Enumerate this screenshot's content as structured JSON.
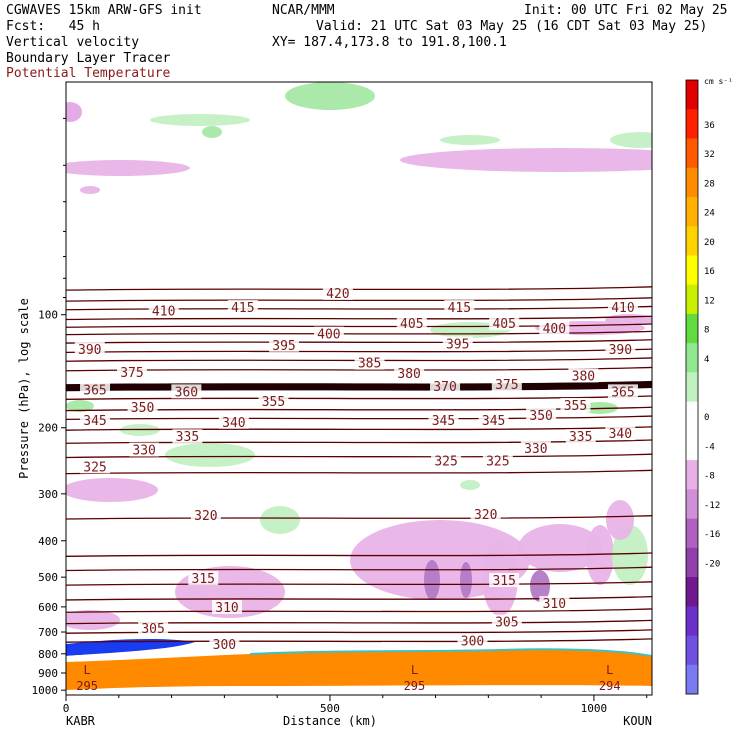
{
  "header": {
    "model": "CGWAVES 15km ARW-GFS init",
    "org": "NCAR/MMM",
    "init": "Init: 00 UTC Fri 02 May 25",
    "fcst": "Fcst:   45 h",
    "valid": "Valid: 21 UTC Sat 03 May 25 (16 CDT Sat 03 May 25)",
    "xy": "XY= 187.4,173.8 to 191.8,100.1",
    "fields": [
      "Vertical velocity",
      "Boundary Layer Tracer",
      "Potential Temperature"
    ]
  },
  "colorbar": {
    "unit": "cm s⁻¹",
    "labels": [
      "36",
      "32",
      "28",
      "24",
      "20",
      "16",
      "12",
      "8",
      "4",
      "0",
      "-4",
      "-8",
      "-12",
      "-16",
      "-20"
    ],
    "colors": [
      "#e00000",
      "#ff2000",
      "#ff5a00",
      "#ff8c00",
      "#ffb000",
      "#ffd200",
      "#ffff00",
      "#c8f000",
      "#60dc40",
      "#90e890",
      "#c0f0c0",
      "#ffffff",
      "#ffffff",
      "#e8b0e8",
      "#d090d8",
      "#b060c0",
      "#9040a8",
      "#701890",
      "#6a30c8",
      "#7050e0",
      "#7a7af0"
    ]
  },
  "chart_data": {
    "type": "contour-cross-section",
    "xlabel": "Distance (km)",
    "ylabel": "Pressure (hPa), log scale",
    "x_ticks": [
      "0",
      "500",
      "1000"
    ],
    "x_tick_values": [
      0,
      500,
      1000
    ],
    "y_ticks": [
      "100",
      "200",
      "300",
      "400",
      "500",
      "600",
      "700",
      "800",
      "900",
      "1000"
    ],
    "y_tick_values": [
      100,
      200,
      300,
      400,
      500,
      600,
      700,
      800,
      900,
      1000
    ],
    "xlim": [
      0,
      1110
    ],
    "ylim": [
      1030,
      24
    ],
    "left_endpoint": "KABR",
    "right_endpoint": "KOUN",
    "surface_low_labels": [
      {
        "mark": "L",
        "value": "295",
        "x": 40
      },
      {
        "mark": "L",
        "value": "295",
        "x": 660
      },
      {
        "mark": "L",
        "value": "294",
        "x": 1030
      }
    ],
    "theta_labels": [
      {
        "text": "420",
        "x": 515,
        "p": 88
      },
      {
        "text": "410",
        "x": 185,
        "p": 98
      },
      {
        "text": "415",
        "x": 335,
        "p": 96
      },
      {
        "text": "415",
        "x": 745,
        "p": 96
      },
      {
        "text": "410",
        "x": 1055,
        "p": 96
      },
      {
        "text": "405",
        "x": 655,
        "p": 106
      },
      {
        "text": "405",
        "x": 830,
        "p": 106
      },
      {
        "text": "400",
        "x": 498,
        "p": 113
      },
      {
        "text": "400",
        "x": 925,
        "p": 109
      },
      {
        "text": "390",
        "x": 45,
        "p": 124
      },
      {
        "text": "395",
        "x": 413,
        "p": 121
      },
      {
        "text": "395",
        "x": 742,
        "p": 120
      },
      {
        "text": "390",
        "x": 1050,
        "p": 124
      },
      {
        "text": "385",
        "x": 575,
        "p": 135
      },
      {
        "text": "375",
        "x": 125,
        "p": 143
      },
      {
        "text": "380",
        "x": 650,
        "p": 144
      },
      {
        "text": "380",
        "x": 980,
        "p": 146
      },
      {
        "text": "365",
        "x": 55,
        "p": 159
      },
      {
        "text": "360",
        "x": 228,
        "p": 161
      },
      {
        "text": "370",
        "x": 718,
        "p": 156
      },
      {
        "text": "375",
        "x": 835,
        "p": 154
      },
      {
        "text": "365",
        "x": 1055,
        "p": 161
      },
      {
        "text": "355",
        "x": 393,
        "p": 171
      },
      {
        "text": "350",
        "x": 145,
        "p": 177
      },
      {
        "text": "355",
        "x": 965,
        "p": 175
      },
      {
        "text": "350",
        "x": 900,
        "p": 186
      },
      {
        "text": "345",
        "x": 55,
        "p": 192
      },
      {
        "text": "340",
        "x": 318,
        "p": 194
      },
      {
        "text": "345",
        "x": 715,
        "p": 192
      },
      {
        "text": "345",
        "x": 810,
        "p": 192
      },
      {
        "text": "335",
        "x": 230,
        "p": 212
      },
      {
        "text": "335",
        "x": 975,
        "p": 212
      },
      {
        "text": "340",
        "x": 1050,
        "p": 208
      },
      {
        "text": "330",
        "x": 148,
        "p": 230
      },
      {
        "text": "330",
        "x": 890,
        "p": 228
      },
      {
        "text": "325",
        "x": 55,
        "p": 255
      },
      {
        "text": "325",
        "x": 720,
        "p": 246
      },
      {
        "text": "325",
        "x": 818,
        "p": 246
      },
      {
        "text": "320",
        "x": 265,
        "p": 344
      },
      {
        "text": "320",
        "x": 795,
        "p": 342
      },
      {
        "text": "315",
        "x": 260,
        "p": 506
      },
      {
        "text": "315",
        "x": 830,
        "p": 512
      },
      {
        "text": "310",
        "x": 305,
        "p": 604
      },
      {
        "text": "310",
        "x": 925,
        "p": 590
      },
      {
        "text": "305",
        "x": 165,
        "p": 688
      },
      {
        "text": "305",
        "x": 835,
        "p": 661
      },
      {
        "text": "300",
        "x": 300,
        "p": 758
      },
      {
        "text": "300",
        "x": 770,
        "p": 743
      }
    ]
  }
}
